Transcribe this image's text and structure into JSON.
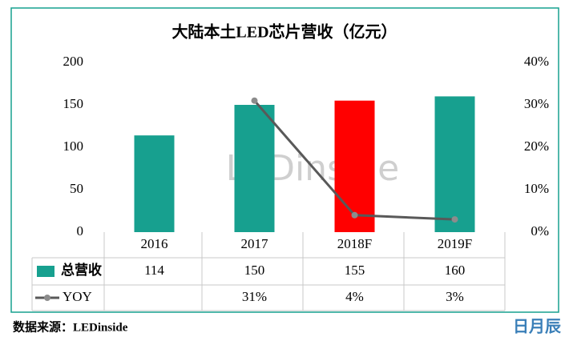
{
  "chart_data": {
    "type": "bar",
    "title": "大陆本土LED芯片营收（亿元）",
    "categories": [
      "2016",
      "2017",
      "2018F",
      "2019F"
    ],
    "series": [
      {
        "name": "总营收",
        "type": "bar",
        "color": "#17a08f",
        "colors": [
          "#17a08f",
          "#17a08f",
          "#ff0000",
          "#17a08f"
        ],
        "values": [
          114,
          150,
          155,
          160
        ]
      },
      {
        "name": "YOY",
        "type": "line",
        "axis": "y2",
        "color": "#595959",
        "values": [
          null,
          31,
          4,
          3
        ],
        "value_labels": [
          null,
          "31%",
          "4%",
          "3%"
        ]
      }
    ],
    "ylim": [
      0,
      200
    ],
    "yticks": [
      0,
      50,
      100,
      150,
      200
    ],
    "y2lim": [
      0,
      40
    ],
    "y2ticks": [
      {
        "value": 0,
        "label": "0%"
      },
      {
        "value": 10,
        "label": "10%"
      },
      {
        "value": 20,
        "label": "20%"
      },
      {
        "value": 30,
        "label": "30%"
      },
      {
        "value": 40,
        "label": "40%"
      }
    ],
    "watermark": "LEDinside"
  },
  "source": "数据来源：LEDinside",
  "logo": "日月辰"
}
